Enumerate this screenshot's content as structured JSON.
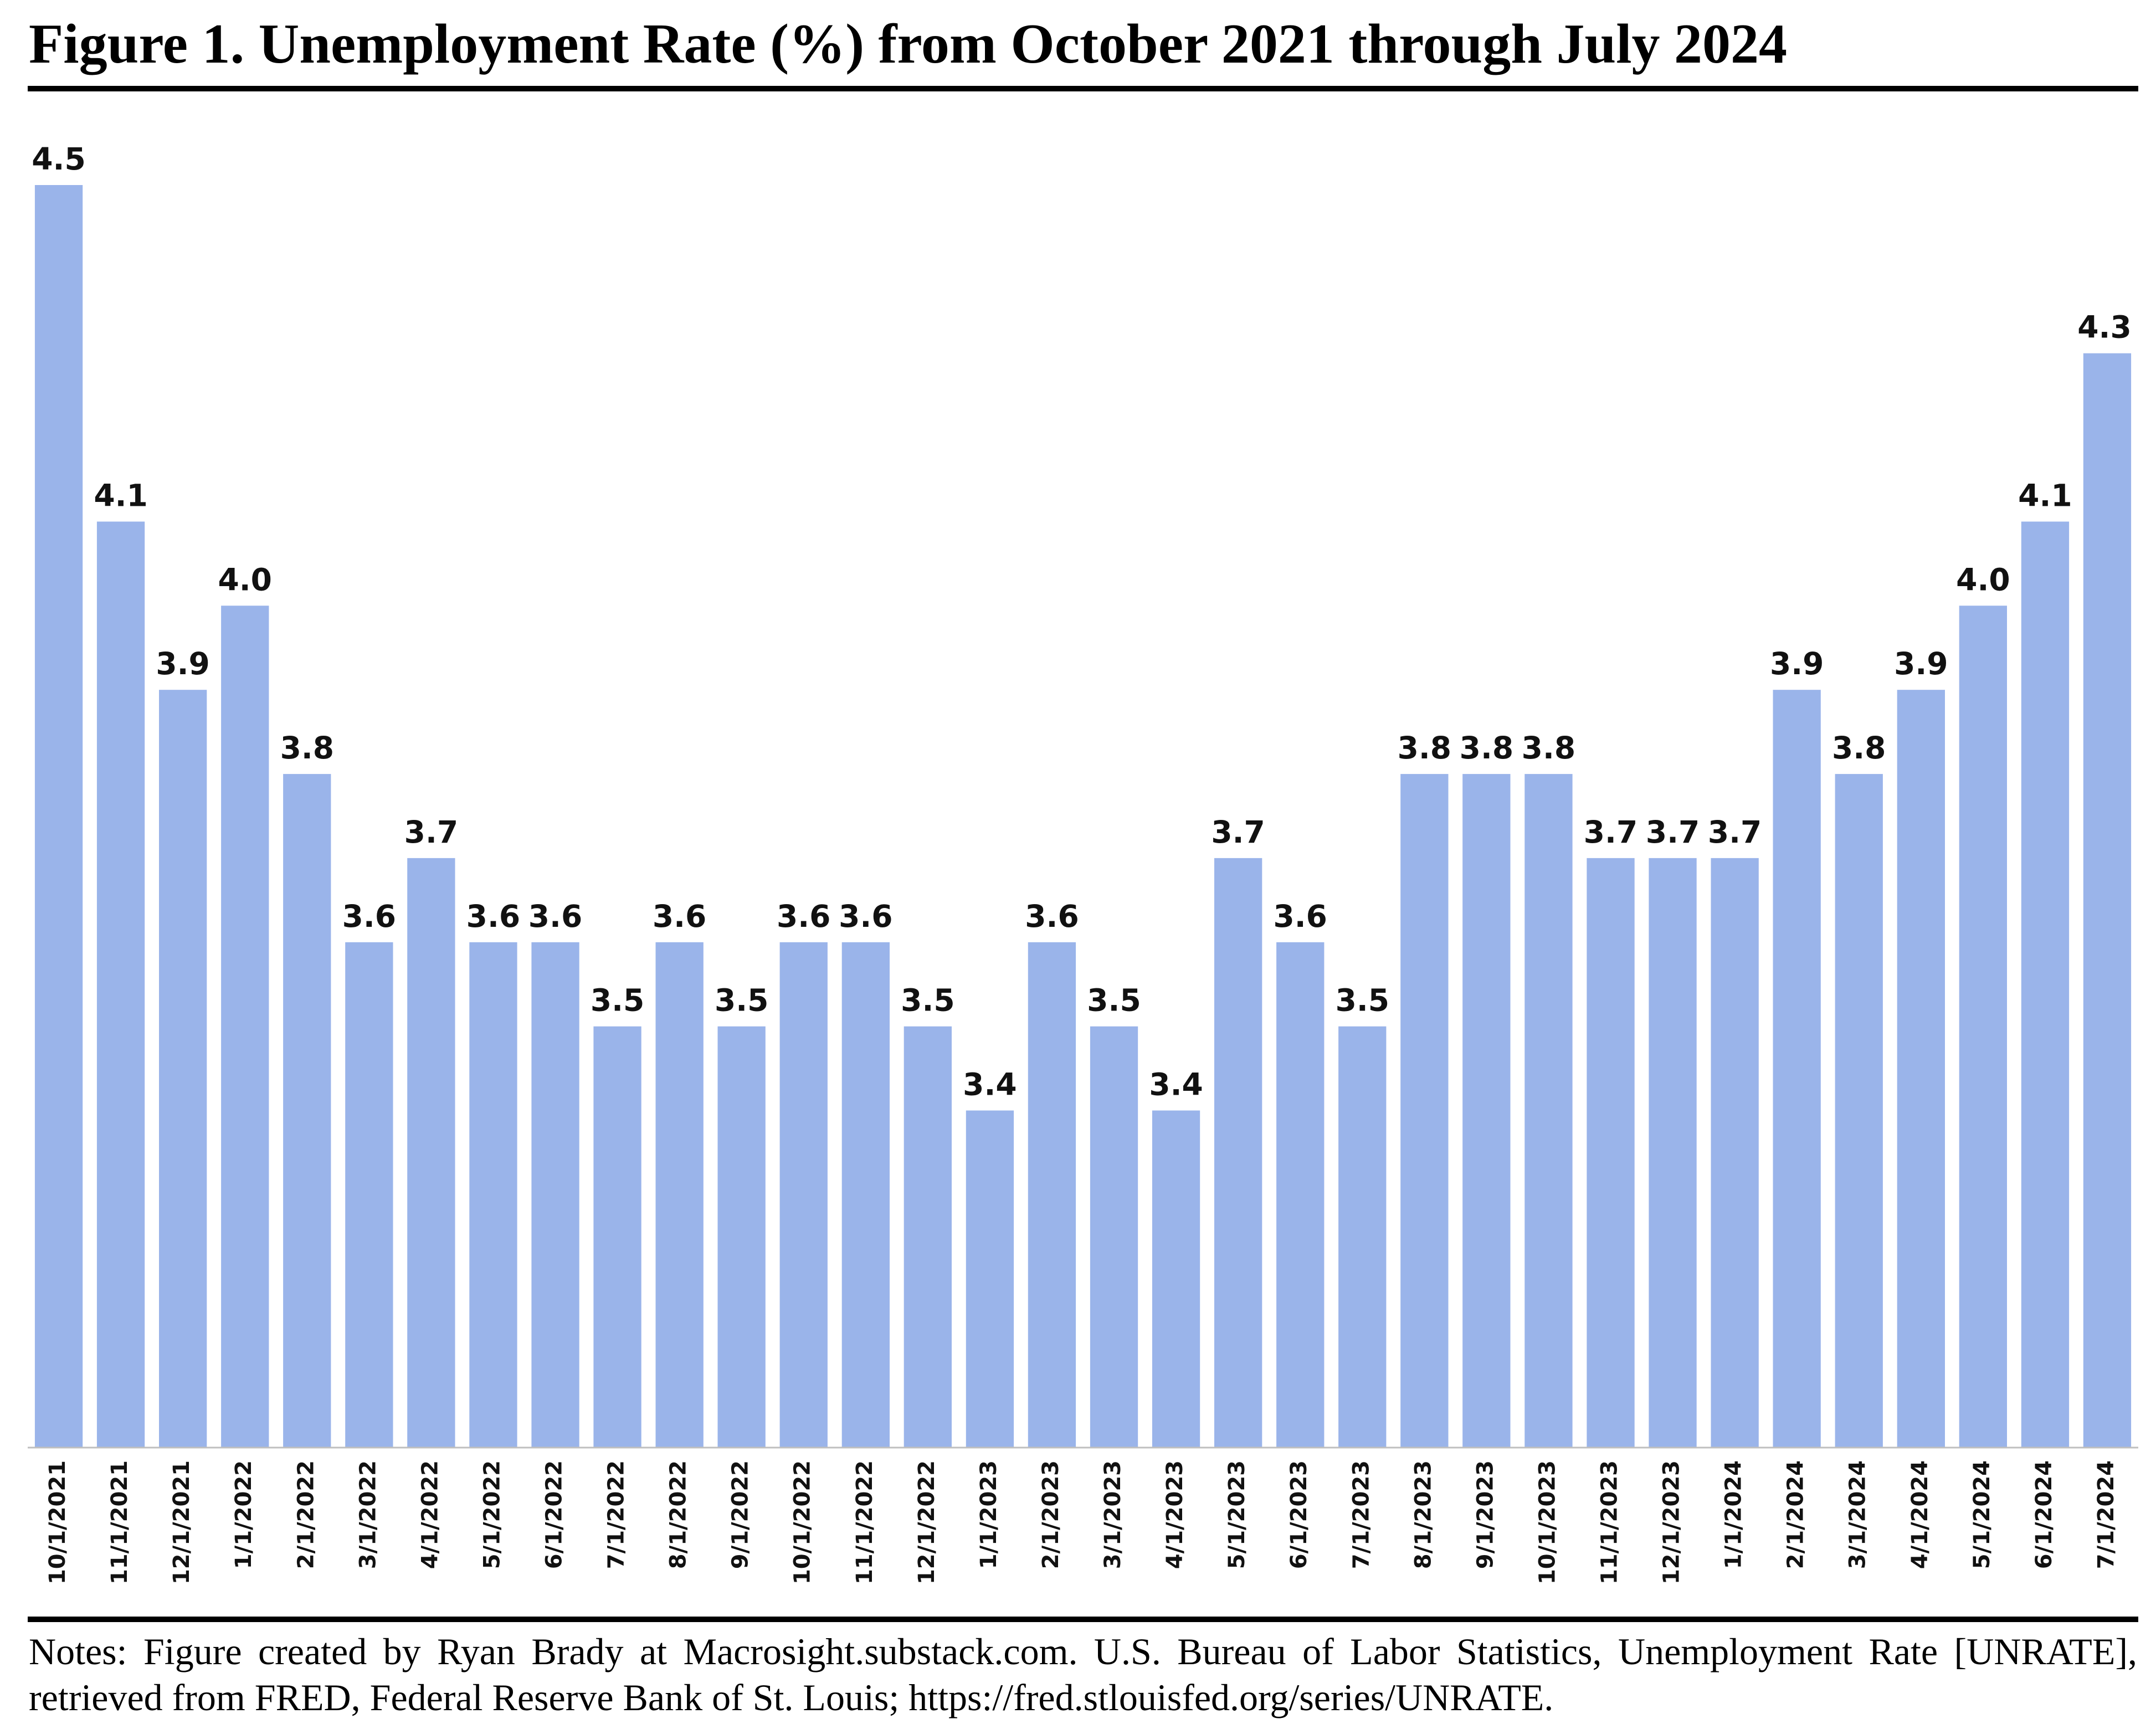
{
  "figure": {
    "title": "Figure 1. Unemployment Rate (%) from October 2021 through July 2024",
    "notes": "Notes: Figure created by Ryan Brady at Macrosight.substack.com. U.S. Bureau of Labor Statistics, Unemployment Rate [UNRATE], retrieved from FRED, Federal Reserve Bank of St. Louis; https://fred.stlouisfed.org/series/UNRATE."
  },
  "colors": {
    "bar": "#9ab4ea",
    "axis": "#bfbfbf",
    "text": "#111111"
  },
  "chart_data": {
    "type": "bar",
    "categories": [
      "10/1/2021",
      "11/1/2021",
      "12/1/2021",
      "1/1/2022",
      "2/1/2022",
      "3/1/2022",
      "4/1/2022",
      "5/1/2022",
      "6/1/2022",
      "7/1/2022",
      "8/1/2022",
      "9/1/2022",
      "10/1/2022",
      "11/1/2022",
      "12/1/2022",
      "1/1/2023",
      "2/1/2023",
      "3/1/2023",
      "4/1/2023",
      "5/1/2023",
      "6/1/2023",
      "7/1/2023",
      "8/1/2023",
      "9/1/2023",
      "10/1/2023",
      "11/1/2023",
      "12/1/2023",
      "1/1/2024",
      "2/1/2024",
      "3/1/2024",
      "4/1/2024",
      "5/1/2024",
      "6/1/2024",
      "7/1/2024"
    ],
    "values": [
      4.5,
      4.1,
      3.9,
      4.0,
      3.8,
      3.6,
      3.7,
      3.6,
      3.6,
      3.5,
      3.6,
      3.5,
      3.6,
      3.6,
      3.5,
      3.4,
      3.6,
      3.5,
      3.4,
      3.7,
      3.6,
      3.5,
      3.8,
      3.8,
      3.8,
      3.7,
      3.7,
      3.7,
      3.9,
      3.8,
      3.9,
      4.0,
      4.1,
      4.3
    ],
    "data_labels": [
      "4.5",
      "4.1",
      "3.9",
      "4.0",
      "3.8",
      "3.6",
      "3.7",
      "3.6",
      "3.6",
      "3.5",
      "3.6",
      "3.5",
      "3.6",
      "3.6",
      "3.5",
      "3.4",
      "3.6",
      "3.5",
      "3.4",
      "3.7",
      "3.6",
      "3.5",
      "3.8",
      "3.8",
      "3.8",
      "3.7",
      "3.7",
      "3.7",
      "3.9",
      "3.8",
      "3.9",
      "4.0",
      "4.1",
      "4.3"
    ],
    "title": "",
    "xlabel": "",
    "ylabel": "",
    "ylim": [
      3.0,
      4.5
    ],
    "grid": false,
    "legend": false
  }
}
